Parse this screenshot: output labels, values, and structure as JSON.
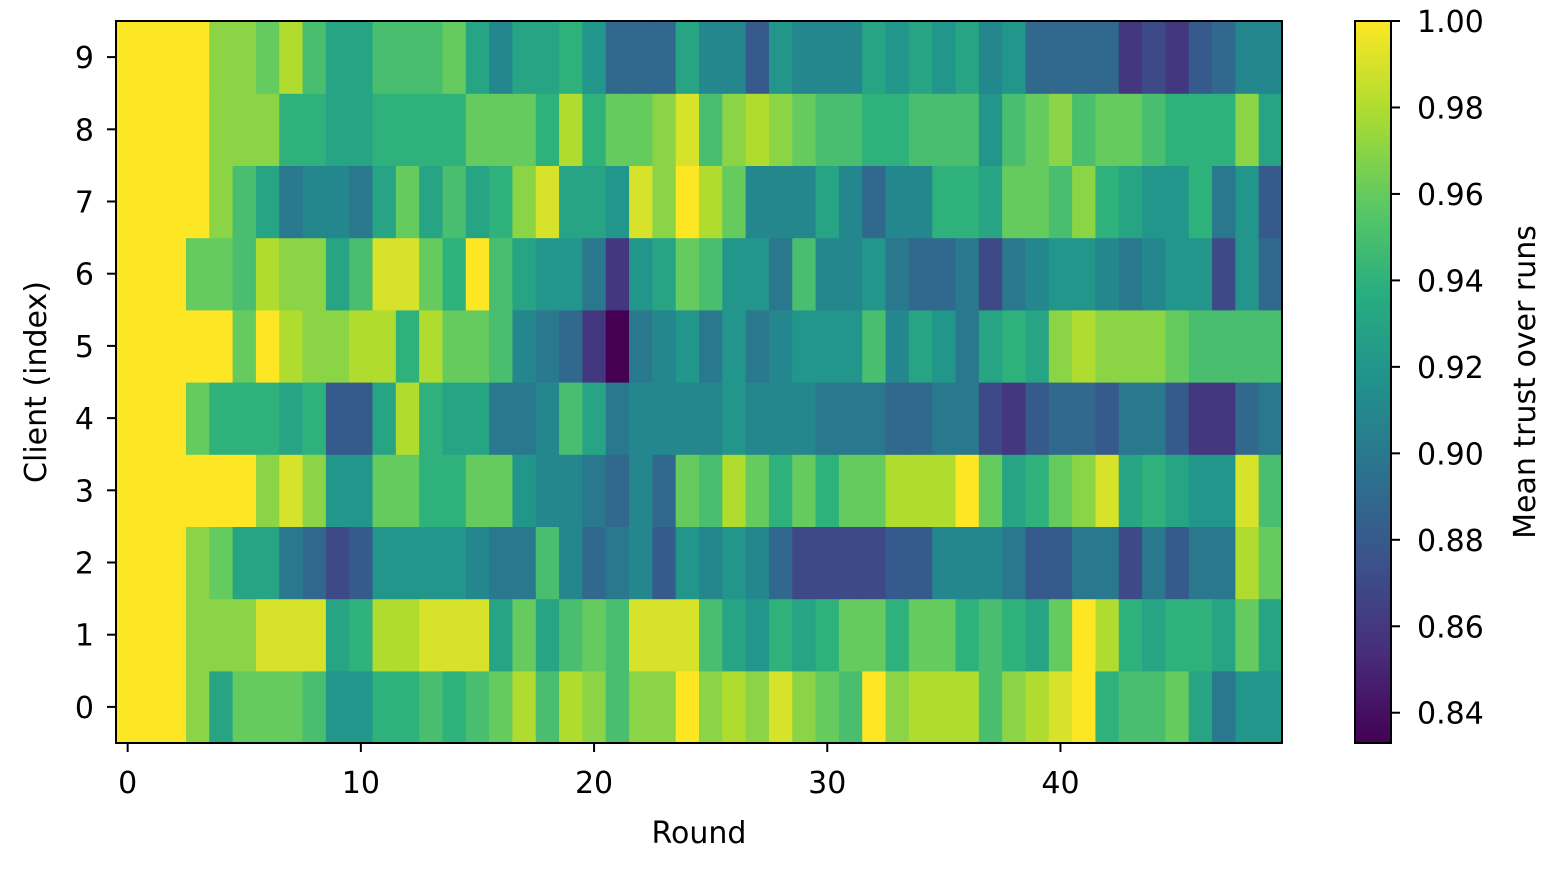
{
  "chart_data": {
    "type": "heatmap",
    "title": "",
    "xlabel": "Round",
    "ylabel": "Client (index)",
    "colorbar_label": "Mean trust over runs",
    "colormap": "viridis",
    "x": [
      0,
      1,
      2,
      3,
      4,
      5,
      6,
      7,
      8,
      9,
      10,
      11,
      12,
      13,
      14,
      15,
      16,
      17,
      18,
      19,
      20,
      21,
      22,
      23,
      24,
      25,
      26,
      27,
      28,
      29,
      30,
      31,
      32,
      33,
      34,
      35,
      36,
      37,
      38,
      39,
      40,
      41,
      42,
      43,
      44,
      45,
      46,
      47,
      48,
      49
    ],
    "y": [
      0,
      1,
      2,
      3,
      4,
      5,
      6,
      7,
      8,
      9
    ],
    "x_ticks": [
      "0",
      "10",
      "20",
      "30",
      "40"
    ],
    "y_ticks": [
      "0",
      "1",
      "2",
      "3",
      "4",
      "5",
      "6",
      "7",
      "8",
      "9"
    ],
    "colorbar_ticks": [
      "0.84",
      "0.86",
      "0.88",
      "0.90",
      "0.92",
      "0.94",
      "0.96",
      "0.98",
      "1.00"
    ],
    "vmin": 0.833,
    "vmax": 1.0,
    "grid": false,
    "values": [
      [
        1.0,
        1.0,
        1.0,
        0.97,
        0.93,
        0.96,
        0.96,
        0.96,
        0.95,
        0.92,
        0.92,
        0.94,
        0.94,
        0.95,
        0.94,
        0.95,
        0.96,
        0.98,
        0.95,
        0.98,
        0.97,
        0.95,
        0.97,
        0.97,
        1.0,
        0.97,
        0.98,
        0.97,
        0.99,
        0.97,
        0.96,
        0.95,
        1.0,
        0.97,
        0.98,
        0.98,
        0.98,
        0.95,
        0.97,
        0.98,
        0.99,
        1.0,
        0.94,
        0.95,
        0.95,
        0.96,
        0.93,
        0.9,
        0.92,
        0.92
      ],
      [
        1.0,
        1.0,
        1.0,
        0.97,
        0.97,
        0.97,
        0.99,
        0.99,
        0.99,
        0.93,
        0.94,
        0.98,
        0.98,
        0.99,
        0.99,
        0.99,
        0.93,
        0.96,
        0.93,
        0.95,
        0.96,
        0.95,
        0.99,
        0.99,
        0.99,
        0.95,
        0.93,
        0.92,
        0.94,
        0.93,
        0.94,
        0.96,
        0.96,
        0.94,
        0.96,
        0.96,
        0.94,
        0.95,
        0.94,
        0.93,
        0.96,
        1.0,
        0.98,
        0.94,
        0.93,
        0.94,
        0.94,
        0.93,
        0.96,
        0.93
      ],
      [
        1.0,
        1.0,
        1.0,
        0.97,
        0.96,
        0.93,
        0.93,
        0.9,
        0.89,
        0.87,
        0.88,
        0.92,
        0.92,
        0.92,
        0.92,
        0.91,
        0.9,
        0.9,
        0.95,
        0.91,
        0.89,
        0.9,
        0.91,
        0.88,
        0.92,
        0.91,
        0.92,
        0.91,
        0.89,
        0.87,
        0.87,
        0.87,
        0.87,
        0.88,
        0.88,
        0.91,
        0.91,
        0.91,
        0.9,
        0.88,
        0.88,
        0.9,
        0.9,
        0.87,
        0.9,
        0.88,
        0.9,
        0.9,
        0.98,
        0.96
      ],
      [
        1.0,
        1.0,
        1.0,
        1.0,
        1.0,
        1.0,
        0.97,
        0.99,
        0.97,
        0.92,
        0.92,
        0.96,
        0.96,
        0.94,
        0.94,
        0.96,
        0.96,
        0.92,
        0.91,
        0.91,
        0.9,
        0.89,
        0.91,
        0.89,
        0.96,
        0.95,
        0.98,
        0.96,
        0.94,
        0.96,
        0.94,
        0.96,
        0.96,
        0.98,
        0.98,
        0.98,
        1.0,
        0.96,
        0.93,
        0.94,
        0.96,
        0.97,
        0.99,
        0.93,
        0.94,
        0.93,
        0.92,
        0.92,
        0.99,
        0.95
      ],
      [
        1.0,
        1.0,
        1.0,
        0.96,
        0.94,
        0.94,
        0.94,
        0.93,
        0.94,
        0.88,
        0.88,
        0.93,
        0.98,
        0.94,
        0.93,
        0.93,
        0.9,
        0.9,
        0.91,
        0.95,
        0.93,
        0.9,
        0.91,
        0.91,
        0.91,
        0.91,
        0.92,
        0.91,
        0.91,
        0.91,
        0.9,
        0.9,
        0.9,
        0.89,
        0.89,
        0.9,
        0.9,
        0.87,
        0.86,
        0.88,
        0.89,
        0.89,
        0.88,
        0.9,
        0.9,
        0.88,
        0.86,
        0.86,
        0.89,
        0.9
      ],
      [
        1.0,
        1.0,
        1.0,
        1.0,
        1.0,
        0.96,
        1.0,
        0.98,
        0.97,
        0.97,
        0.98,
        0.98,
        0.94,
        0.98,
        0.96,
        0.96,
        0.95,
        0.91,
        0.9,
        0.89,
        0.86,
        0.83,
        0.9,
        0.91,
        0.92,
        0.9,
        0.92,
        0.9,
        0.91,
        0.92,
        0.92,
        0.92,
        0.95,
        0.91,
        0.93,
        0.92,
        0.9,
        0.93,
        0.94,
        0.93,
        0.97,
        0.98,
        0.97,
        0.97,
        0.97,
        0.96,
        0.95,
        0.95,
        0.95,
        0.95
      ],
      [
        1.0,
        1.0,
        1.0,
        0.96,
        0.96,
        0.95,
        0.98,
        0.97,
        0.97,
        0.93,
        0.95,
        0.99,
        0.99,
        0.96,
        0.94,
        1.0,
        0.95,
        0.93,
        0.92,
        0.92,
        0.9,
        0.86,
        0.92,
        0.93,
        0.96,
        0.95,
        0.92,
        0.92,
        0.9,
        0.95,
        0.91,
        0.91,
        0.92,
        0.9,
        0.89,
        0.89,
        0.9,
        0.87,
        0.9,
        0.91,
        0.92,
        0.92,
        0.91,
        0.9,
        0.91,
        0.92,
        0.92,
        0.87,
        0.92,
        0.89
      ],
      [
        1.0,
        1.0,
        1.0,
        1.0,
        0.97,
        0.95,
        0.93,
        0.9,
        0.91,
        0.91,
        0.9,
        0.93,
        0.96,
        0.93,
        0.95,
        0.93,
        0.94,
        0.97,
        0.99,
        0.93,
        0.93,
        0.92,
        0.99,
        0.97,
        1.0,
        0.98,
        0.96,
        0.91,
        0.91,
        0.91,
        0.93,
        0.91,
        0.89,
        0.91,
        0.91,
        0.94,
        0.94,
        0.93,
        0.96,
        0.96,
        0.95,
        0.97,
        0.94,
        0.93,
        0.92,
        0.92,
        0.94,
        0.9,
        0.92,
        0.88
      ],
      [
        1.0,
        1.0,
        1.0,
        1.0,
        0.97,
        0.97,
        0.97,
        0.94,
        0.94,
        0.93,
        0.93,
        0.94,
        0.94,
        0.94,
        0.94,
        0.96,
        0.96,
        0.96,
        0.94,
        0.98,
        0.94,
        0.96,
        0.96,
        0.97,
        0.99,
        0.95,
        0.97,
        0.98,
        0.97,
        0.96,
        0.95,
        0.95,
        0.94,
        0.94,
        0.95,
        0.95,
        0.95,
        0.92,
        0.95,
        0.96,
        0.97,
        0.95,
        0.96,
        0.96,
        0.95,
        0.94,
        0.94,
        0.94,
        0.97,
        0.93
      ],
      [
        1.0,
        1.0,
        1.0,
        1.0,
        0.97,
        0.97,
        0.96,
        0.98,
        0.95,
        0.93,
        0.93,
        0.95,
        0.95,
        0.95,
        0.96,
        0.93,
        0.91,
        0.93,
        0.93,
        0.94,
        0.92,
        0.89,
        0.89,
        0.89,
        0.93,
        0.91,
        0.91,
        0.88,
        0.92,
        0.91,
        0.91,
        0.91,
        0.93,
        0.92,
        0.93,
        0.92,
        0.93,
        0.91,
        0.92,
        0.89,
        0.89,
        0.89,
        0.89,
        0.86,
        0.87,
        0.86,
        0.88,
        0.89,
        0.91,
        0.91
      ]
    ]
  }
}
